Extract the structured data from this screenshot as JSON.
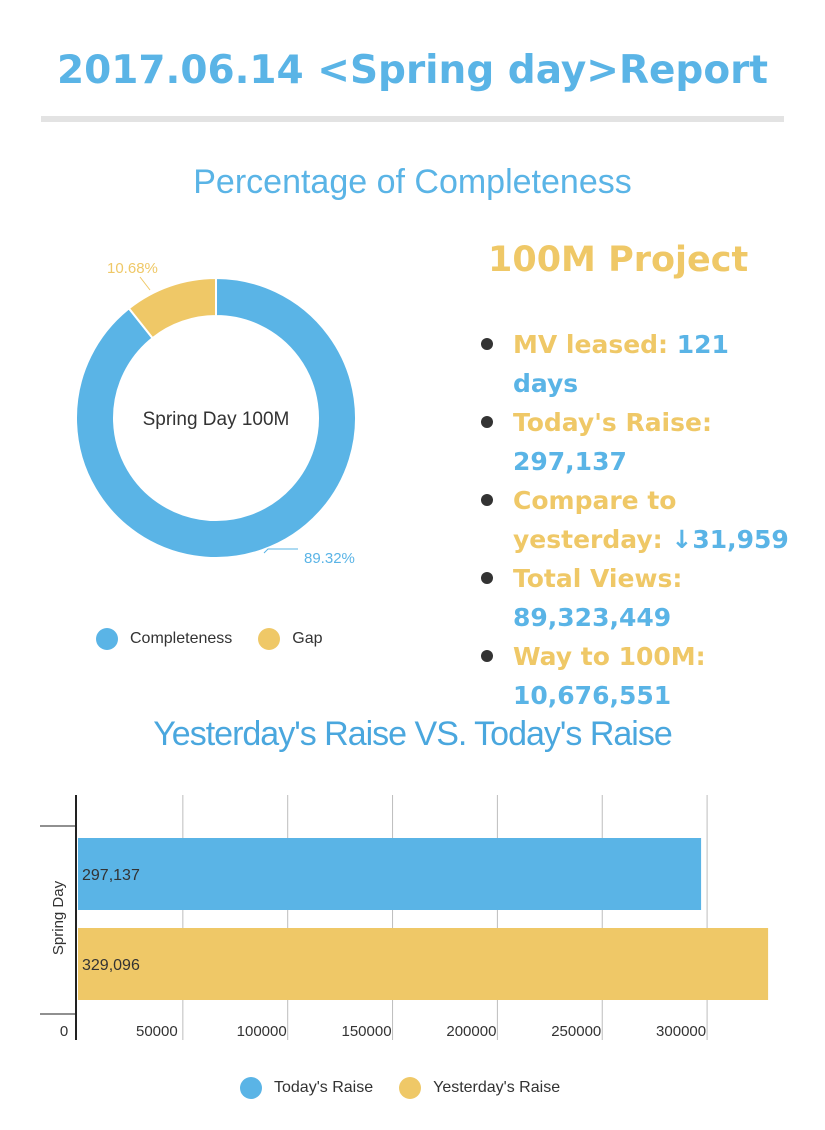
{
  "report": {
    "title": "2017.06.14 <Spring day>Report"
  },
  "donut_section": {
    "title": "Percentage of Completeness"
  },
  "bar_section": {
    "title": "Yesterday's Raise VS. Today's Raise"
  },
  "project": {
    "title": "100M Project",
    "stats": [
      {
        "label": "MV leased: ",
        "value": "121 days"
      },
      {
        "label": "Today's Raise: ",
        "value": "297,137"
      },
      {
        "label": "Compare to yesterday: ",
        "value": "↓31,959"
      },
      {
        "label": "Total Views: ",
        "value": "89,323,449"
      },
      {
        "label": "Way to 100M: ",
        "value": "10,676,551"
      }
    ]
  },
  "colors": {
    "blue": "#5ab4e6",
    "gold": "#efc867",
    "title_blue": "#5ab4e6",
    "rule": "#e3e3e3"
  },
  "chart_data": [
    {
      "type": "pie",
      "center_label": "Spring Day 100M",
      "slices": [
        {
          "name": "Completeness",
          "value": 89.32,
          "label": "89.32%",
          "color": "#5ab4e6"
        },
        {
          "name": "Gap",
          "value": 10.68,
          "label": "10.68%",
          "color": "#efc867"
        }
      ],
      "legend": {
        "placement": "bottom",
        "entries": [
          "Completeness",
          "Gap"
        ]
      }
    },
    {
      "type": "bar",
      "orientation": "horizontal",
      "categories": [
        "Spring Day"
      ],
      "series": [
        {
          "name": "Today's Raise",
          "values": [
            297137
          ],
          "labels": [
            "297,137"
          ],
          "color": "#5ab4e6"
        },
        {
          "name": "Yesterday's Raise",
          "values": [
            329096
          ],
          "labels": [
            "329,096"
          ],
          "color": "#efc867"
        }
      ],
      "xlim": [
        0,
        330000
      ],
      "xticks": [
        0,
        50000,
        100000,
        150000,
        200000,
        250000,
        300000
      ],
      "xtick_labels": [
        "0",
        "50000",
        "100000",
        "150000",
        "200000",
        "250000",
        "300000"
      ],
      "grid": true,
      "legend": {
        "placement": "bottom",
        "entries": [
          "Today's Raise",
          "Yesterday's Raise"
        ]
      }
    }
  ]
}
